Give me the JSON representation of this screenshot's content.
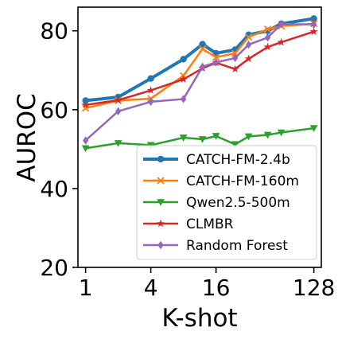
{
  "chart_data": {
    "type": "line",
    "xlabel": "K-shot",
    "ylabel": "AUROC",
    "x_scale": "log2",
    "xlim": [
      0.85,
      150
    ],
    "ylim": [
      20,
      86
    ],
    "x_ticks": [
      1,
      4,
      16,
      128
    ],
    "x_tick_labels": [
      "1",
      "4",
      "16",
      "128"
    ],
    "y_ticks": [
      20,
      40,
      60,
      80
    ],
    "y_tick_labels": [
      "20",
      "40",
      "60",
      "80"
    ],
    "legend_position": "lower-right",
    "x": [
      1,
      2,
      4,
      8,
      12,
      16,
      24,
      32,
      48,
      64,
      128
    ],
    "series": [
      {
        "name": "CATCH-FM-2.4b",
        "color": "#1f77b4",
        "marker": "circle",
        "line_width": 4,
        "values": [
          62.3,
          63.2,
          67.9,
          72.8,
          76.6,
          74.3,
          75.2,
          79.0,
          80.0,
          81.8,
          83.1
        ]
      },
      {
        "name": "CATCH-FM-160m",
        "color": "#ff7f0e",
        "marker": "x",
        "line_width": 2.5,
        "values": [
          60.4,
          62.3,
          62.8,
          68.6,
          75.4,
          73.3,
          74.3,
          78.4,
          80.4,
          81.2,
          81.8
        ]
      },
      {
        "name": "Qwen2.5-500m",
        "color": "#2ca02c",
        "marker": "triangle-down",
        "line_width": 2.5,
        "values": [
          50.2,
          51.5,
          51.0,
          52.9,
          52.5,
          53.3,
          51.2,
          53.2,
          53.6,
          54.2,
          55.3
        ]
      },
      {
        "name": "CLMBR",
        "color": "#d62728",
        "marker": "star",
        "line_width": 2.5,
        "values": [
          61.2,
          62.4,
          64.9,
          67.7,
          70.5,
          71.9,
          70.3,
          72.9,
          75.9,
          77.1,
          79.8
        ]
      },
      {
        "name": "Random Forest",
        "color": "#9467bd",
        "marker": "diamond",
        "line_width": 2.5,
        "values": [
          52.2,
          59.6,
          62.0,
          62.7,
          70.9,
          72.0,
          73.1,
          76.5,
          78.3,
          81.7,
          81.6
        ]
      }
    ]
  }
}
